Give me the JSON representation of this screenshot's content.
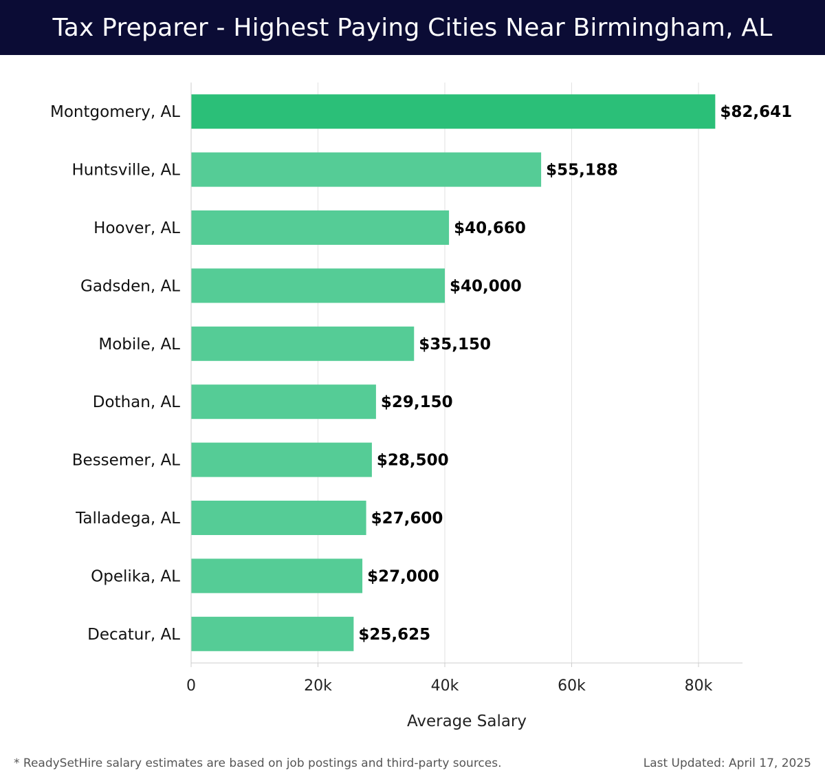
{
  "header": {
    "title": "Tax Preparer - Highest Paying Cities Near Birmingham, AL"
  },
  "footer": {
    "note": "* ReadySetHire salary estimates are based on job postings and third-party sources.",
    "updated": "Last Updated: April 17, 2025"
  },
  "colors": {
    "header_bg": "#0b0c35",
    "bar_top": "#2bbf78",
    "bar": "#55cc96"
  },
  "chart_data": {
    "type": "bar",
    "orientation": "horizontal",
    "title": "Tax Preparer - Highest Paying Cities Near Birmingham, AL",
    "xlabel": "Average Salary",
    "ylabel": "",
    "xlim": [
      0,
      87000
    ],
    "ticks": [
      0,
      20000,
      40000,
      60000,
      80000
    ],
    "tick_labels": [
      "0",
      "20k",
      "40k",
      "60k",
      "80k"
    ],
    "grid": "vertical",
    "categories": [
      "Montgomery, AL",
      "Huntsville, AL",
      "Hoover, AL",
      "Gadsden, AL",
      "Mobile, AL",
      "Dothan, AL",
      "Bessemer, AL",
      "Talladega, AL",
      "Opelika, AL",
      "Decatur, AL"
    ],
    "values": [
      82641,
      55188,
      40660,
      40000,
      35150,
      29150,
      28500,
      27600,
      27000,
      25625
    ],
    "value_labels": [
      "$82,641",
      "$55,188",
      "$40,660",
      "$40,000",
      "$35,150",
      "$29,150",
      "$28,500",
      "$27,600",
      "$27,000",
      "$25,625"
    ]
  }
}
